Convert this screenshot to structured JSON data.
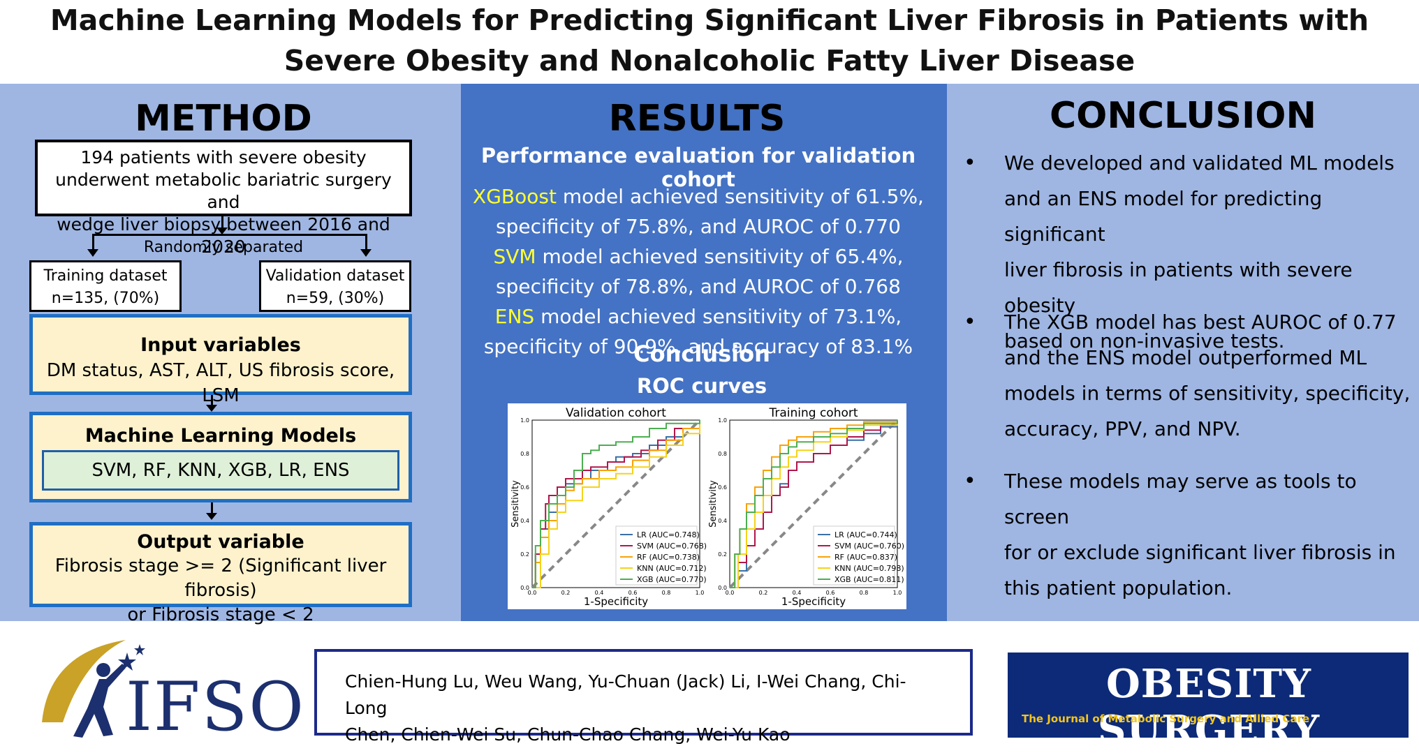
{
  "title": {
    "line1": "Machine Learning Models for Predicting Significant Liver Fibrosis in Patients with",
    "line2": "Severe Obesity and Nonalcoholic Fatty Liver Disease"
  },
  "method": {
    "heading": "METHOD",
    "patients": [
      "194 patients with severe obesity",
      "underwent metabolic bariatric surgery and",
      "wedge liver biopsy between 2016 and 2020"
    ],
    "split_label": "Randomly separated",
    "training": [
      "Training dataset",
      "n=135, (70%)"
    ],
    "validation": [
      "Validation dataset",
      "n=59, (30%)"
    ],
    "input_title": "Input variables",
    "input_text": "DM status, AST, ALT, US fibrosis score, LSM",
    "models_title": "Machine Learning Models",
    "models_text": "SVM, RF, KNN, XGB, LR, ENS",
    "output_title": "Output variable",
    "output_lines": [
      "Fibrosis stage >= 2 (Significant liver fibrosis)",
      "or Fibrosis stage < 2"
    ]
  },
  "results": {
    "heading": "RESULTS",
    "subheading": "Performance evaluation for validation cohort",
    "xgb_name": "XGBoost",
    "xgb_line1": " model achieved sensitivity of 61.5%,",
    "xgb_line2": "specificity of 75.8%, and AUROC of 0.770",
    "svm_name": "SVM",
    "svm_line1": " model achieved sensitivity of 65.4%,",
    "svm_line2": "specificity of 78.8%, and AUROC of 0.768",
    "ens_name": "ENS",
    "ens_line1": " model achieved sensitivity of 73.1%,",
    "ens_line2": "specificity of 90.9%, and accuracy of 83.1%",
    "overlap_word": "Conclusion",
    "roc_title": "ROC curves"
  },
  "chart_data": [
    {
      "type": "line",
      "title": "Validation cohort",
      "xlabel": "1-Specificity",
      "ylabel": "Sensitivity",
      "xlim": [
        0,
        1
      ],
      "ylim": [
        0,
        1
      ],
      "ticks": [
        "0.0",
        "0.2",
        "0.4",
        "0.6",
        "0.8",
        "1.0"
      ],
      "series": [
        {
          "name": "LR (AUC=0.748)",
          "color": "#3a6fa8",
          "x": [
            0,
            0.02,
            0.05,
            0.1,
            0.15,
            0.2,
            0.3,
            0.35,
            0.45,
            0.5,
            0.6,
            0.7,
            0.8,
            0.9,
            1.0
          ],
          "y": [
            0,
            0.2,
            0.35,
            0.45,
            0.55,
            0.62,
            0.65,
            0.7,
            0.75,
            0.78,
            0.8,
            0.85,
            0.9,
            0.95,
            1.0
          ]
        },
        {
          "name": "SVM (AUC=0.768)",
          "color": "#b0174a",
          "x": [
            0,
            0.02,
            0.05,
            0.08,
            0.1,
            0.15,
            0.2,
            0.25,
            0.3,
            0.35,
            0.45,
            0.55,
            0.65,
            0.75,
            0.85,
            1.0
          ],
          "y": [
            0,
            0.2,
            0.35,
            0.5,
            0.55,
            0.6,
            0.65,
            0.65,
            0.7,
            0.72,
            0.75,
            0.78,
            0.82,
            0.88,
            0.95,
            1.0
          ]
        },
        {
          "name": "RF (AUC=0.738)",
          "color": "#f7a20a",
          "x": [
            0,
            0.02,
            0.05,
            0.1,
            0.15,
            0.2,
            0.25,
            0.3,
            0.4,
            0.5,
            0.6,
            0.7,
            0.8,
            0.9,
            1.0
          ],
          "y": [
            0,
            0.15,
            0.3,
            0.4,
            0.5,
            0.58,
            0.62,
            0.65,
            0.7,
            0.72,
            0.76,
            0.82,
            0.88,
            0.95,
            1.0
          ]
        },
        {
          "name": "KNN (AUC=0.712)",
          "color": "#f5d31a",
          "x": [
            0,
            0.05,
            0.1,
            0.15,
            0.2,
            0.3,
            0.4,
            0.5,
            0.6,
            0.7,
            0.8,
            0.9,
            1.0
          ],
          "y": [
            0,
            0.2,
            0.35,
            0.45,
            0.52,
            0.6,
            0.65,
            0.68,
            0.72,
            0.78,
            0.85,
            0.92,
            1.0
          ]
        },
        {
          "name": "XGB (AUC=0.770)",
          "color": "#4caf50",
          "x": [
            0,
            0.02,
            0.05,
            0.1,
            0.15,
            0.2,
            0.25,
            0.3,
            0.35,
            0.4,
            0.5,
            0.6,
            0.7,
            0.8,
            1.0
          ],
          "y": [
            0,
            0.25,
            0.4,
            0.5,
            0.55,
            0.6,
            0.7,
            0.8,
            0.82,
            0.85,
            0.87,
            0.9,
            0.95,
            0.98,
            1.0
          ]
        }
      ]
    },
    {
      "type": "line",
      "title": "Training cohort",
      "xlabel": "1-Specificity",
      "ylabel": "Sensitivity",
      "xlim": [
        0,
        1
      ],
      "ylim": [
        0,
        1
      ],
      "ticks": [
        "0.0",
        "0.2",
        "0.4",
        "0.6",
        "0.8",
        "1.0"
      ],
      "series": [
        {
          "name": "LR (AUC=0.744)",
          "color": "#3a6fa8",
          "x": [
            0,
            0.05,
            0.1,
            0.15,
            0.2,
            0.25,
            0.3,
            0.35,
            0.4,
            0.5,
            0.6,
            0.7,
            0.8,
            0.9,
            1.0
          ],
          "y": [
            0,
            0.1,
            0.25,
            0.35,
            0.45,
            0.55,
            0.62,
            0.7,
            0.75,
            0.8,
            0.85,
            0.88,
            0.92,
            0.96,
            1.0
          ]
        },
        {
          "name": "SVM (AUC=0.760)",
          "color": "#b0174a",
          "x": [
            0,
            0.05,
            0.1,
            0.15,
            0.2,
            0.25,
            0.3,
            0.35,
            0.4,
            0.5,
            0.6,
            0.7,
            0.8,
            0.9,
            1.0
          ],
          "y": [
            0,
            0.15,
            0.25,
            0.35,
            0.45,
            0.55,
            0.6,
            0.7,
            0.75,
            0.8,
            0.85,
            0.9,
            0.94,
            0.97,
            1.0
          ]
        },
        {
          "name": "RF (AUC=0.837)",
          "color": "#f7a20a",
          "x": [
            0,
            0.03,
            0.06,
            0.1,
            0.15,
            0.2,
            0.25,
            0.3,
            0.35,
            0.4,
            0.5,
            0.6,
            0.7,
            0.8,
            1.0
          ],
          "y": [
            0,
            0.2,
            0.35,
            0.5,
            0.6,
            0.7,
            0.78,
            0.85,
            0.88,
            0.9,
            0.93,
            0.95,
            0.97,
            0.99,
            1.0
          ]
        },
        {
          "name": "KNN (AUC=0.798)",
          "color": "#f5d31a",
          "x": [
            0,
            0.05,
            0.1,
            0.15,
            0.2,
            0.25,
            0.3,
            0.35,
            0.4,
            0.5,
            0.6,
            0.7,
            0.8,
            1.0
          ],
          "y": [
            0,
            0.2,
            0.35,
            0.45,
            0.55,
            0.65,
            0.72,
            0.78,
            0.82,
            0.87,
            0.9,
            0.94,
            0.97,
            1.0
          ]
        },
        {
          "name": "XGB (AUC=0.811)",
          "color": "#4caf50",
          "x": [
            0,
            0.03,
            0.06,
            0.1,
            0.15,
            0.2,
            0.25,
            0.3,
            0.35,
            0.4,
            0.5,
            0.6,
            0.7,
            0.8,
            1.0
          ],
          "y": [
            0,
            0.2,
            0.35,
            0.45,
            0.55,
            0.65,
            0.72,
            0.8,
            0.84,
            0.87,
            0.9,
            0.92,
            0.95,
            0.98,
            1.0
          ]
        }
      ]
    }
  ],
  "conclusion": {
    "heading": "CONCLUSION",
    "bullet_glyph": "•",
    "bullets": [
      [
        "We developed and validated ML models",
        "and an ENS model for predicting significant",
        "liver fibrosis in patients with severe obesity",
        "based on non-invasive tests."
      ],
      [
        "The XGB model has best AUROC of 0.77",
        "and the ENS model outperformed ML",
        "models in terms of sensitivity, specificity,",
        "accuracy, PPV, and NPV."
      ],
      [
        "These models may serve as tools to screen",
        "for or exclude significant liver fibrosis in",
        "this patient population."
      ]
    ]
  },
  "footer": {
    "ifso_logo_text": "IFSO",
    "authors_line1": "Chien-Hung Lu, Weu Wang, Yu-Chuan (Jack) Li, I-Wei Chang, Chi-Long",
    "authors_line2": "Chen, Chien-Wei Su, Chun-Chao Chang, Wei-Yu Kao",
    "journal_title": "OBESITY SURGERY",
    "journal_subtitle": "The Journal of Metabolic Surgery and Allied Care",
    "journal_color": "#0c2a78",
    "journal_subtitle_color": "#f5c518"
  }
}
